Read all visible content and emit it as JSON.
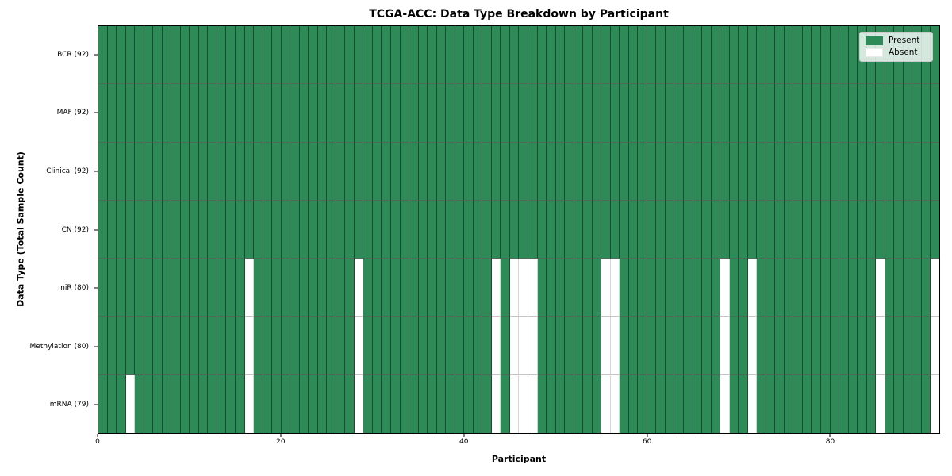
{
  "title": "TCGA-ACC: Data Type Breakdown by Participant",
  "axes": {
    "xlabel": "Participant",
    "ylabel": "Data Type (Total Sample Count)"
  },
  "legend": {
    "present_label": "Present",
    "absent_label": "Absent"
  },
  "colors": {
    "present": "#2e8b57",
    "absent": "#ffffff",
    "plot_border": "#000000",
    "legend_border": "#cccccc"
  },
  "chart_data": {
    "type": "heatmap",
    "title": "TCGA-ACC: Data Type Breakdown by Participant",
    "xlabel": "Participant",
    "ylabel": "Data Type (Total Sample Count)",
    "n_participants": 92,
    "x_range": [
      0,
      92
    ],
    "x_ticks": [
      0,
      20,
      40,
      60,
      80
    ],
    "grid": false,
    "legend_position": "upper right",
    "legend": [
      {
        "label": "Present",
        "color": "#2e8b57"
      },
      {
        "label": "Absent",
        "color": "#ffffff"
      }
    ],
    "rows": [
      {
        "label": "BCR (92)",
        "data_type": "BCR",
        "present_count": 92,
        "absent_participants": []
      },
      {
        "label": "MAF (92)",
        "data_type": "MAF",
        "present_count": 92,
        "absent_participants": []
      },
      {
        "label": "Clinical (92)",
        "data_type": "Clinical",
        "present_count": 92,
        "absent_participants": []
      },
      {
        "label": "CN (92)",
        "data_type": "CN",
        "present_count": 92,
        "absent_participants": []
      },
      {
        "label": "miR (80)",
        "data_type": "miR",
        "present_count": 80,
        "absent_participants": [
          16,
          28,
          43,
          45,
          46,
          47,
          55,
          56,
          68,
          71,
          85,
          91
        ]
      },
      {
        "label": "Methylation (80)",
        "data_type": "Methylation",
        "present_count": 80,
        "absent_participants": [
          16,
          28,
          43,
          45,
          46,
          47,
          55,
          56,
          68,
          71,
          85,
          91
        ]
      },
      {
        "label": "mRNA (79)",
        "data_type": "mRNA",
        "present_count": 79,
        "absent_participants": [
          3,
          16,
          28,
          43,
          45,
          46,
          47,
          55,
          56,
          68,
          71,
          85,
          91
        ]
      }
    ]
  }
}
